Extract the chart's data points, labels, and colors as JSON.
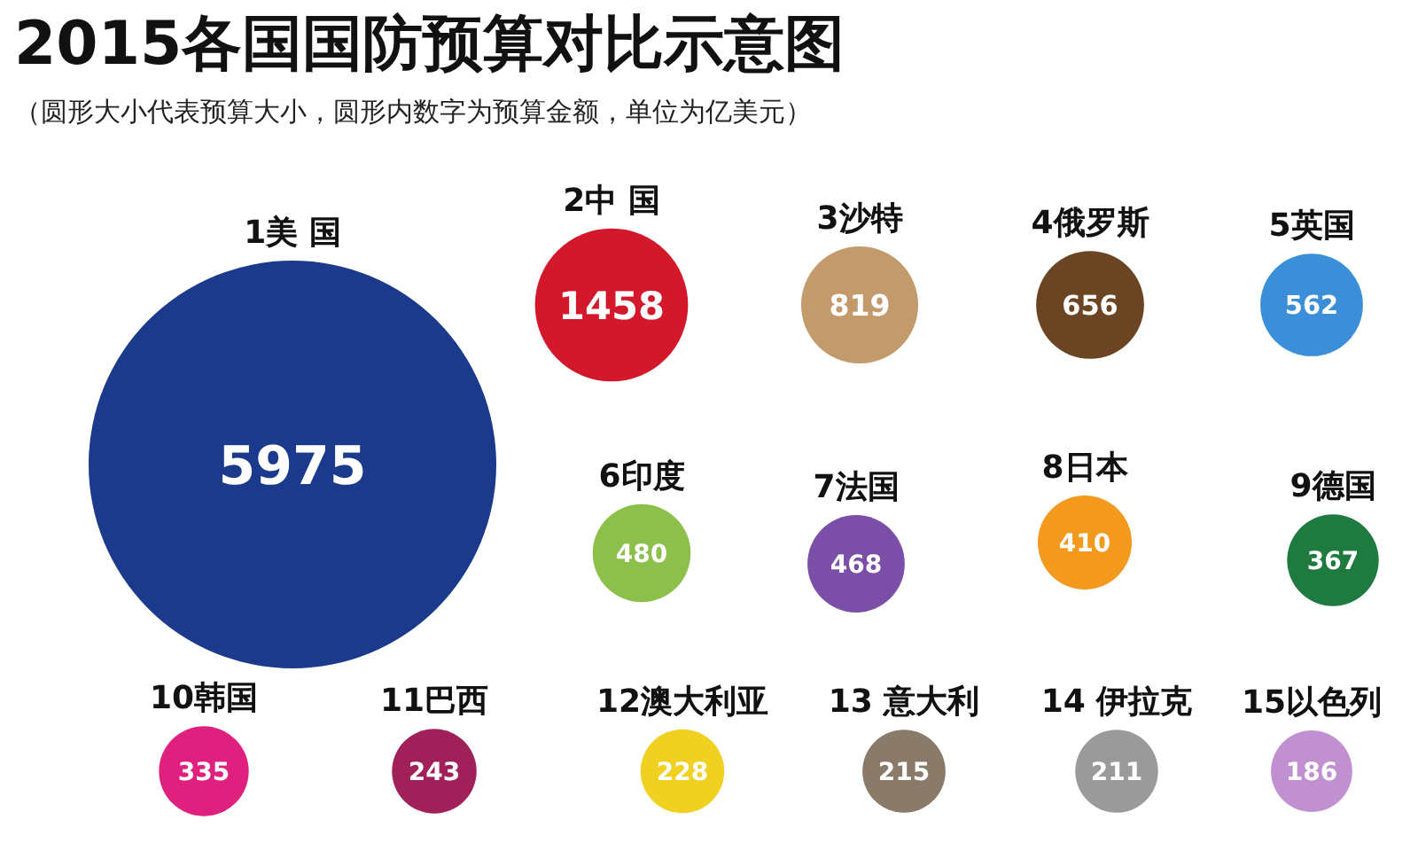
{
  "chart_data": {
    "type": "other",
    "title": "2015各国国防预算对比示意图",
    "subtitle": "（圆形大小代表预算大小，圆形内数字为预算金额，单位为亿美元）",
    "categories": [
      "1美 国",
      "2中 国",
      "3沙特",
      "4俄罗斯",
      "5英国",
      "6印度",
      "7法国",
      "8日本",
      "9德国",
      "10韩国",
      "11巴西",
      "12澳大利亚",
      "13 意大利",
      "14 伊拉克",
      "15以色列"
    ],
    "values": [
      5975,
      1458,
      819,
      656,
      562,
      480,
      468,
      410,
      367,
      335,
      243,
      228,
      215,
      211,
      186
    ],
    "colors": [
      "#1b3a8c",
      "#d3182b",
      "#c29a6c",
      "#6b4423",
      "#3a8fd8",
      "#8cc04a",
      "#7b4fa8",
      "#f39a1e",
      "#1e7a3e",
      "#e0207f",
      "#a0205a",
      "#f0d020",
      "#8a7a6a",
      "#9a9a9a",
      "#c090d0"
    ],
    "data_labels": true
  }
}
